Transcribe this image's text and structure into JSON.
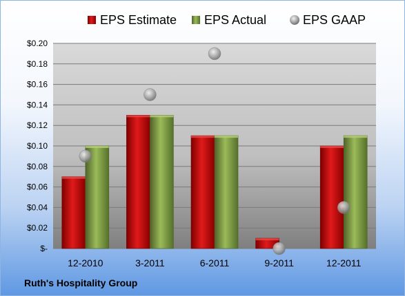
{
  "chart_data": {
    "type": "bar",
    "categories": [
      "12-2010",
      "3-2011",
      "6-2011",
      "9-2011",
      "12-2011"
    ],
    "series": [
      {
        "name": "EPS Estimate",
        "kind": "bar",
        "color": "#c00000",
        "values": [
          0.07,
          0.13,
          0.11,
          0.01,
          0.1
        ]
      },
      {
        "name": "EPS Actual",
        "kind": "bar",
        "color": "#77933c",
        "values": [
          0.1,
          0.13,
          0.11,
          0.0,
          0.11
        ]
      },
      {
        "name": "EPS GAAP",
        "kind": "scatter",
        "color": "#a6a6a6",
        "values": [
          0.09,
          0.15,
          0.19,
          0.0,
          0.04
        ]
      }
    ],
    "yticks": [
      "$-",
      "$0.02",
      "$0.04",
      "$0.06",
      "$0.08",
      "$0.10",
      "$0.12",
      "$0.14",
      "$0.16",
      "$0.18",
      "$0.20"
    ],
    "ylim": [
      0,
      0.2
    ],
    "grid": true,
    "legend": "top"
  },
  "footer": {
    "company": "Ruth's Hospitality Group"
  }
}
